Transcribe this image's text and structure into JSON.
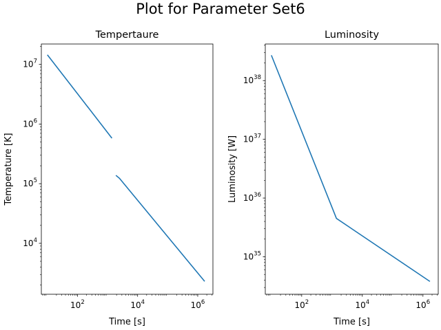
{
  "figure": {
    "title": "Plot for Parameter Set6"
  },
  "chart_data": [
    {
      "type": "line",
      "title": "Tempertaure",
      "xlabel": "Time [s]",
      "ylabel": "Temperature [K]",
      "xscale": "log",
      "yscale": "log",
      "xlim": [
        6.3,
        3200000
      ],
      "ylim": [
        1400,
        22000000
      ],
      "xticks": [
        {
          "value": 100,
          "base": "10",
          "exp": "2"
        },
        {
          "value": 10000,
          "base": "10",
          "exp": "4"
        },
        {
          "value": 1000000,
          "base": "10",
          "exp": "6"
        }
      ],
      "yticks": [
        {
          "value": 10000,
          "base": "10",
          "exp": "4"
        },
        {
          "value": 100000,
          "base": "10",
          "exp": "5"
        },
        {
          "value": 1000000,
          "base": "10",
          "exp": "6"
        },
        {
          "value": 10000000,
          "base": "10",
          "exp": "7"
        }
      ],
      "color": "#1f77b4",
      "grid": false,
      "series": [
        {
          "x": [
            10,
            1400
          ],
          "y": [
            14500000,
            580000
          ]
        },
        {
          "x": [
            1900,
            2500,
            1700000
          ],
          "y": [
            138000,
            123000,
            2300
          ]
        }
      ]
    },
    {
      "type": "line",
      "title": "Luminosity",
      "xlabel": "Time [s]",
      "ylabel": "Luminosity [W]",
      "xscale": "log",
      "yscale": "log",
      "xlim": [
        6.3,
        3200000
      ],
      "ylim": [
        2.3e+34,
        4.2e+38
      ],
      "xticks": [
        {
          "value": 100,
          "base": "10",
          "exp": "2"
        },
        {
          "value": 10000,
          "base": "10",
          "exp": "4"
        },
        {
          "value": 1000000,
          "base": "10",
          "exp": "6"
        }
      ],
      "yticks": [
        {
          "value": 1e+35,
          "base": "10",
          "exp": "35"
        },
        {
          "value": 1e+36,
          "base": "10",
          "exp": "36"
        },
        {
          "value": 1e+37,
          "base": "10",
          "exp": "37"
        },
        {
          "value": 1e+38,
          "base": "10",
          "exp": "38"
        }
      ],
      "color": "#1f77b4",
      "grid": false,
      "series": [
        {
          "x": [
            10,
            1400,
            1700000
          ],
          "y": [
            2.7e+38,
            4.5e+35,
            3.8e+34
          ]
        }
      ]
    }
  ]
}
